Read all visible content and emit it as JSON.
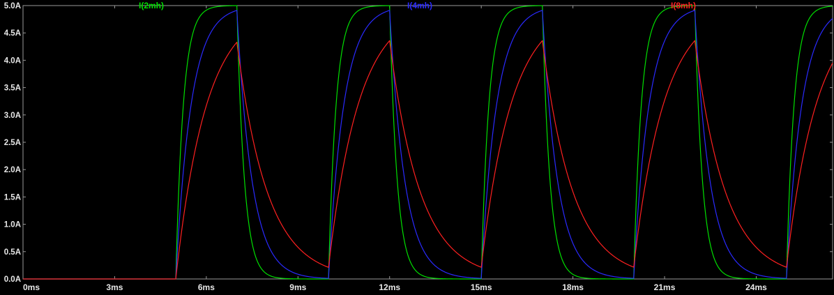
{
  "chart_data": {
    "type": "line",
    "title": "",
    "background": "#000000",
    "axis_color": "#9a9a9a",
    "tick_label_color": "#e8e8e8",
    "grid": false,
    "legend_position": "top",
    "x_axis": {
      "unit": "ms",
      "min": 0,
      "max": 26.5,
      "tick_step": 3,
      "tick_labels": [
        "0ms",
        "3ms",
        "6ms",
        "9ms",
        "12ms",
        "15ms",
        "18ms",
        "21ms",
        "24ms"
      ]
    },
    "y_axis": {
      "unit": "A",
      "min": 0,
      "max": 5,
      "tick_step": 0.5,
      "tick_labels": [
        "0.0A",
        "0.5A",
        "1.0A",
        "1.5A",
        "2.0A",
        "2.5A",
        "3.0A",
        "3.5A",
        "4.0A",
        "4.5A",
        "5.0A"
      ]
    },
    "pulse": {
      "first_rise_ms": 5,
      "on_duration_ms": 2,
      "period_ms": 5,
      "supply_amplitude_A": 5,
      "num_pulses": 4
    },
    "series": [
      {
        "name": "I(2mh)",
        "color": "#00e000",
        "tau_ms": 0.25,
        "peak_A": 5.0,
        "valley_between_pulses_A": 0.0
      },
      {
        "name": "I(4mh)",
        "color": "#2a2aff",
        "tau_ms": 0.5,
        "peak_A": 4.91,
        "valley_between_pulses_A": 0.01
      },
      {
        "name": "I(8mh)",
        "color": "#ff2020",
        "tau_ms": 1.0,
        "peak_A": 4.32,
        "valley_between_pulses_A": 0.22
      }
    ]
  }
}
